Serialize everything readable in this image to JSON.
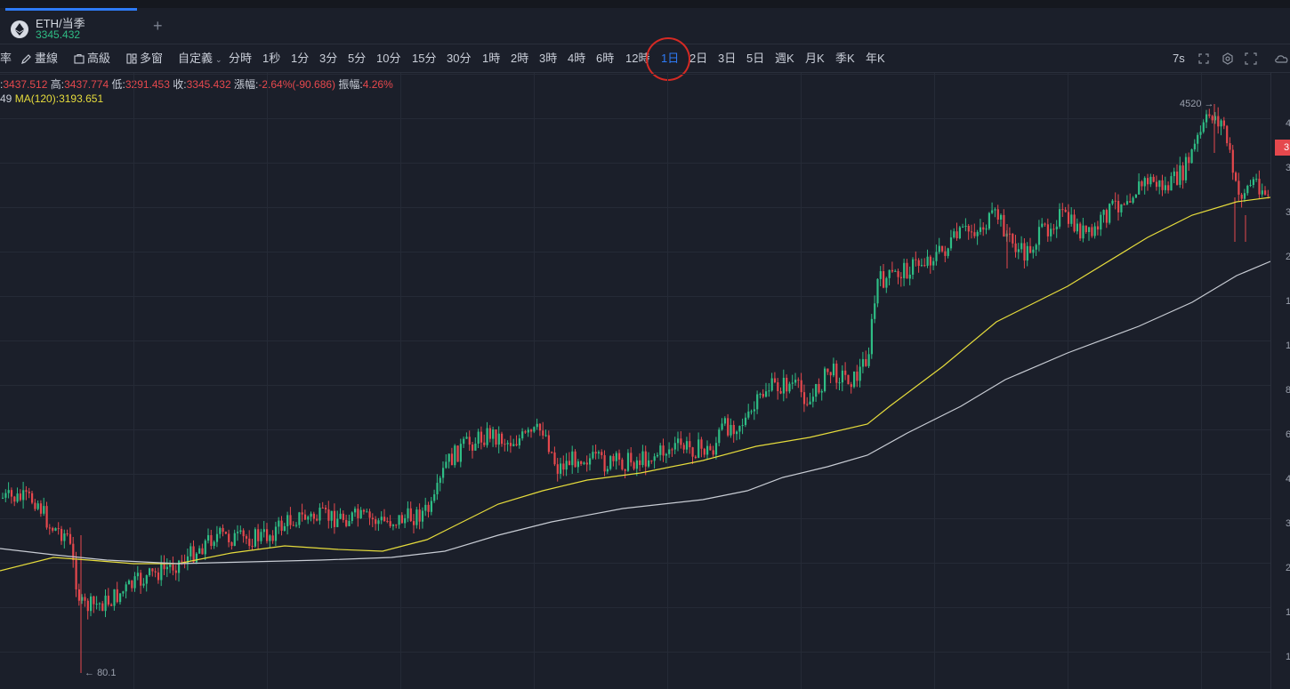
{
  "tab": {
    "symbol": "ETH/当季",
    "price": "3345.432",
    "add_label": "+"
  },
  "toolbar": {
    "items": [
      "率",
      "畫線",
      "高級",
      "多窗",
      "自定義",
      "分時",
      "1秒",
      "1分",
      "3分",
      "5分",
      "10分",
      "15分",
      "30分",
      "1時",
      "2時",
      "3時",
      "4時",
      "6時",
      "12時",
      "1日",
      "2日",
      "3日",
      "5日",
      "週K",
      "月K",
      "季K",
      "年K"
    ],
    "active": "1日",
    "refresh": "7s"
  },
  "info": {
    "open_label": ":",
    "open_value": "3437.512",
    "high_label": "高:",
    "high_value": "3437.774",
    "low_label": "低:",
    "low_value": "3291.453",
    "close_label": "收:",
    "close_value": "3345.432",
    "change_label": "漲幅:",
    "change_value": "-2.64%(-90.686)",
    "amp_label": "振幅:",
    "amp_value": "4.26%",
    "ma_prefix": "49",
    "ma_label": "MA(120):",
    "ma_value": "3193.651"
  },
  "annotations": {
    "high": "4520",
    "low": "80.1"
  },
  "axis": {
    "ticks": [
      "4",
      "3",
      "3",
      "2",
      "1",
      "1",
      "8",
      "6",
      "4",
      "3",
      "2",
      "1",
      "1"
    ],
    "current_tag": "3"
  },
  "colors": {
    "up": "#2fbd85",
    "down": "#e5484d",
    "ma_yellow": "#e6dc3c",
    "ma_white": "#c8ccd4",
    "accent": "#2e7bf6",
    "highlight": "#d42a24"
  },
  "chart_data": {
    "type": "candlestick",
    "ma_series": [
      {
        "name": "MA(120)",
        "value": "3193.651"
      }
    ],
    "high_marker": 4520,
    "low_marker": 80.1,
    "last_close": 3345.432
  }
}
